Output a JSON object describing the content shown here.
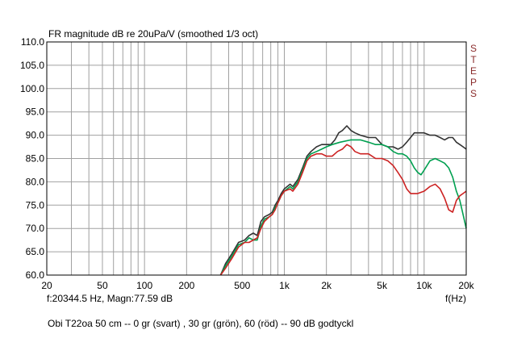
{
  "chart_data": {
    "type": "line",
    "title": "FR magnitude dB re 20uPa/V (smoothed  1/3 oct)",
    "side_label": "STEPS",
    "readout": "f:20344.5 Hz, Magn:77.59 dB",
    "xlabel": "f(Hz)",
    "caption": "Obi T22oa 50 cm -- 0 gr (svart) , 30 gr (grön), 60 (röd) -- 90 dB godtyckl",
    "x_scale": "log",
    "xlim": [
      20,
      20000
    ],
    "ylim": [
      60,
      110
    ],
    "grid": true,
    "x_ticks": [
      {
        "v": 20,
        "label": "20"
      },
      {
        "v": 50,
        "label": "50"
      },
      {
        "v": 100,
        "label": "100"
      },
      {
        "v": 200,
        "label": "200"
      },
      {
        "v": 500,
        "label": "500"
      },
      {
        "v": 1000,
        "label": "1k"
      },
      {
        "v": 2000,
        "label": "2k"
      },
      {
        "v": 5000,
        "label": "5k"
      },
      {
        "v": 10000,
        "label": "10k"
      },
      {
        "v": 20000,
        "label": "20k"
      }
    ],
    "y_ticks": [
      "60.0",
      "65.0",
      "70.0",
      "75.0",
      "80.0",
      "85.0",
      "90.0",
      "95.0",
      "100.0",
      "105.0",
      "110.0"
    ],
    "series": [
      {
        "color": "#333333",
        "points": [
          [
            350,
            60.0
          ],
          [
            380,
            62.5
          ],
          [
            420,
            64.5
          ],
          [
            470,
            67.0
          ],
          [
            520,
            67.5
          ],
          [
            560,
            68.5
          ],
          [
            600,
            69.0
          ],
          [
            640,
            68.5
          ],
          [
            680,
            71.5
          ],
          [
            720,
            72.5
          ],
          [
            780,
            73.0
          ],
          [
            820,
            73.5
          ],
          [
            860,
            75.0
          ],
          [
            900,
            76.0
          ],
          [
            950,
            77.5
          ],
          [
            1000,
            78.5
          ],
          [
            1100,
            79.5
          ],
          [
            1150,
            79.0
          ],
          [
            1250,
            80.5
          ],
          [
            1350,
            83.0
          ],
          [
            1450,
            85.5
          ],
          [
            1550,
            86.5
          ],
          [
            1700,
            87.5
          ],
          [
            1850,
            88.0
          ],
          [
            2000,
            88.0
          ],
          [
            2150,
            88.0
          ],
          [
            2300,
            89.0
          ],
          [
            2450,
            90.5
          ],
          [
            2600,
            91.0
          ],
          [
            2800,
            92.0
          ],
          [
            3000,
            91.0
          ],
          [
            3200,
            90.5
          ],
          [
            3500,
            90.0
          ],
          [
            4000,
            89.5
          ],
          [
            4500,
            89.5
          ],
          [
            5000,
            88.0
          ],
          [
            5500,
            87.5
          ],
          [
            6000,
            87.5
          ],
          [
            6500,
            87.0
          ],
          [
            7000,
            87.5
          ],
          [
            7500,
            88.5
          ],
          [
            8000,
            89.5
          ],
          [
            8500,
            90.5
          ],
          [
            9000,
            90.5
          ],
          [
            10000,
            90.5
          ],
          [
            11000,
            90.0
          ],
          [
            12000,
            90.0
          ],
          [
            13000,
            89.5
          ],
          [
            14000,
            89.0
          ],
          [
            15000,
            89.5
          ],
          [
            16000,
            89.5
          ],
          [
            17000,
            88.5
          ],
          [
            18000,
            88.0
          ],
          [
            19000,
            87.5
          ],
          [
            20000,
            87.0
          ]
        ]
      },
      {
        "color": "#00a050",
        "points": [
          [
            350,
            60.0
          ],
          [
            380,
            62.0
          ],
          [
            420,
            64.0
          ],
          [
            470,
            66.5
          ],
          [
            520,
            67.0
          ],
          [
            560,
            68.0
          ],
          [
            600,
            67.5
          ],
          [
            640,
            67.5
          ],
          [
            680,
            70.5
          ],
          [
            720,
            72.0
          ],
          [
            780,
            72.5
          ],
          [
            820,
            73.0
          ],
          [
            860,
            74.5
          ],
          [
            900,
            75.5
          ],
          [
            950,
            77.0
          ],
          [
            1000,
            78.0
          ],
          [
            1100,
            79.0
          ],
          [
            1150,
            78.5
          ],
          [
            1250,
            80.0
          ],
          [
            1350,
            82.5
          ],
          [
            1450,
            85.0
          ],
          [
            1550,
            86.0
          ],
          [
            1700,
            86.5
          ],
          [
            1850,
            87.0
          ],
          [
            2000,
            87.5
          ],
          [
            2200,
            88.0
          ],
          [
            2500,
            88.5
          ],
          [
            3000,
            89.0
          ],
          [
            3500,
            89.0
          ],
          [
            4000,
            88.5
          ],
          [
            4500,
            88.0
          ],
          [
            5000,
            88.0
          ],
          [
            5500,
            87.5
          ],
          [
            6000,
            86.5
          ],
          [
            6500,
            86.0
          ],
          [
            7000,
            86.0
          ],
          [
            7500,
            85.5
          ],
          [
            8000,
            84.5
          ],
          [
            8500,
            83.0
          ],
          [
            9000,
            82.0
          ],
          [
            9500,
            81.5
          ],
          [
            10000,
            82.5
          ],
          [
            11000,
            84.5
          ],
          [
            12000,
            85.0
          ],
          [
            13000,
            84.5
          ],
          [
            14000,
            84.0
          ],
          [
            15000,
            83.0
          ],
          [
            16000,
            81.0
          ],
          [
            17000,
            78.0
          ],
          [
            18000,
            76.0
          ],
          [
            19000,
            73.0
          ],
          [
            20000,
            70.0
          ]
        ]
      },
      {
        "color": "#cc2222",
        "points": [
          [
            350,
            60.0
          ],
          [
            380,
            61.5
          ],
          [
            420,
            63.5
          ],
          [
            470,
            66.0
          ],
          [
            520,
            67.0
          ],
          [
            560,
            67.0
          ],
          [
            600,
            67.5
          ],
          [
            640,
            68.0
          ],
          [
            680,
            70.0
          ],
          [
            720,
            71.5
          ],
          [
            780,
            72.5
          ],
          [
            820,
            73.0
          ],
          [
            860,
            74.0
          ],
          [
            900,
            75.5
          ],
          [
            950,
            77.0
          ],
          [
            1000,
            78.0
          ],
          [
            1100,
            78.5
          ],
          [
            1150,
            78.0
          ],
          [
            1250,
            79.5
          ],
          [
            1350,
            82.0
          ],
          [
            1450,
            84.5
          ],
          [
            1550,
            85.5
          ],
          [
            1700,
            86.0
          ],
          [
            1850,
            86.0
          ],
          [
            2000,
            85.5
          ],
          [
            2200,
            85.5
          ],
          [
            2400,
            86.5
          ],
          [
            2600,
            87.0
          ],
          [
            2800,
            88.0
          ],
          [
            3000,
            87.5
          ],
          [
            3200,
            86.5
          ],
          [
            3500,
            86.0
          ],
          [
            4000,
            86.0
          ],
          [
            4500,
            85.0
          ],
          [
            5000,
            85.0
          ],
          [
            5500,
            84.5
          ],
          [
            6000,
            83.5
          ],
          [
            6500,
            82.0
          ],
          [
            7000,
            80.5
          ],
          [
            7500,
            78.5
          ],
          [
            8000,
            77.5
          ],
          [
            8500,
            77.5
          ],
          [
            9000,
            77.5
          ],
          [
            10000,
            78.0
          ],
          [
            11000,
            79.0
          ],
          [
            12000,
            79.5
          ],
          [
            13000,
            78.5
          ],
          [
            14000,
            76.5
          ],
          [
            15000,
            74.0
          ],
          [
            16000,
            73.5
          ],
          [
            17000,
            76.0
          ],
          [
            18000,
            77.0
          ],
          [
            19000,
            77.5
          ],
          [
            20000,
            78.0
          ]
        ]
      }
    ]
  }
}
